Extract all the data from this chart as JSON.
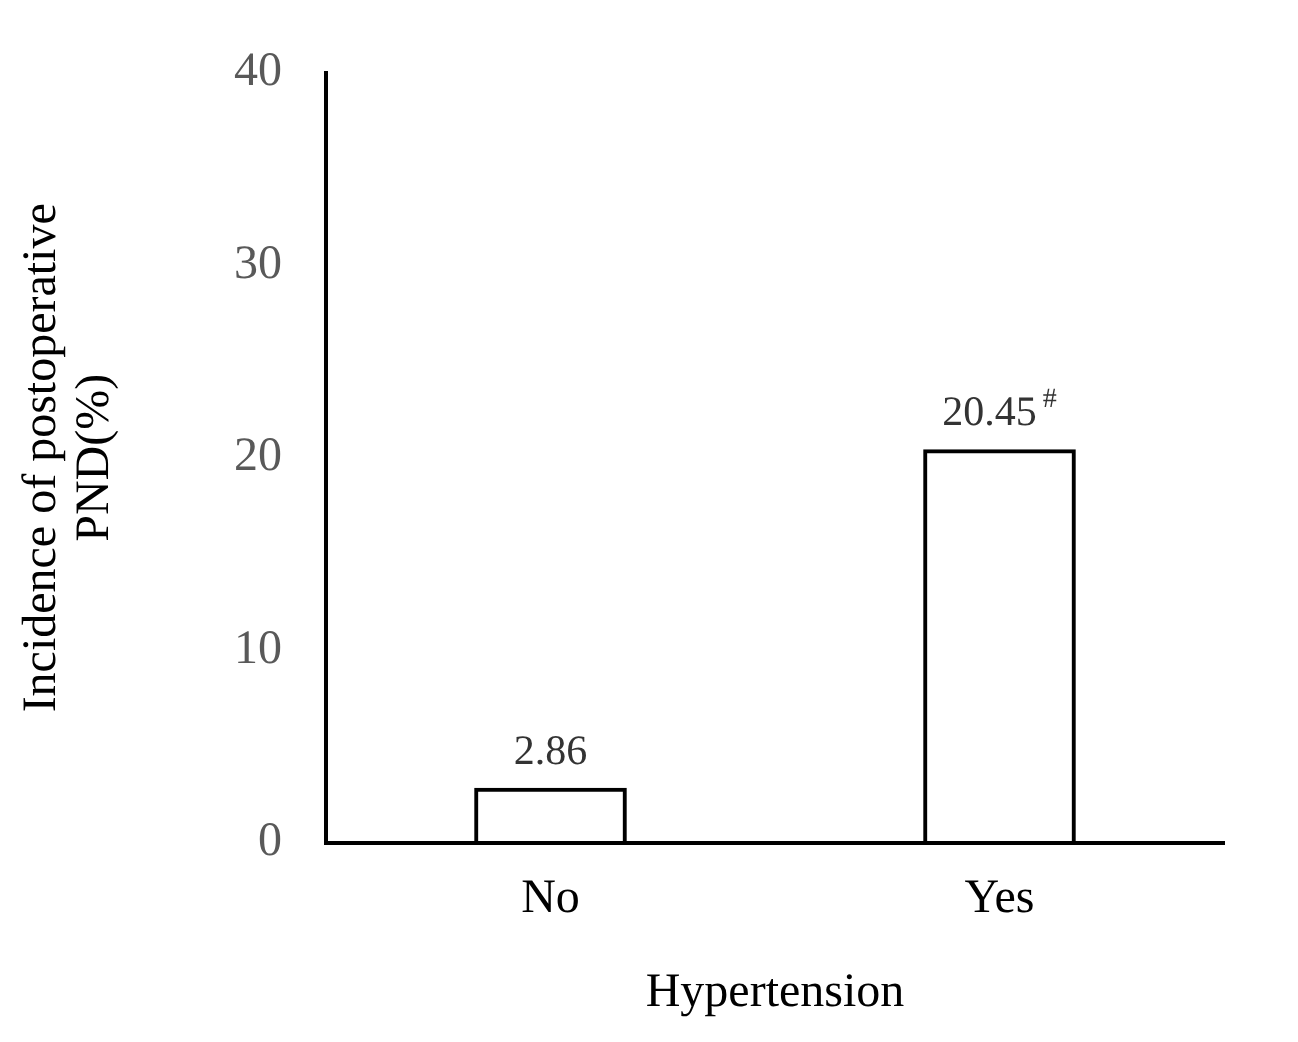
{
  "chart_data": {
    "type": "bar",
    "xlabel": "Hypertension",
    "ylabel": "Incidence of postoperative PND(%)",
    "categories": [
      "No",
      "Yes"
    ],
    "values": [
      2.86,
      20.45
    ],
    "value_labels": [
      "2.86",
      "20.45$^{#}$"
    ],
    "color": "#000000",
    "ylim": [
      0,
      40
    ],
    "yticks": [
      0,
      10,
      20,
      30,
      40
    ],
    "grid": false,
    "legend": false
  }
}
